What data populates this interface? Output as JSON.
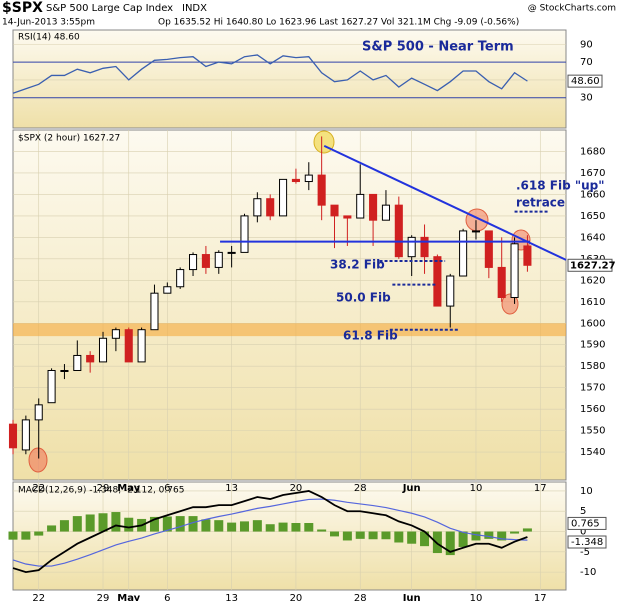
{
  "header": {
    "symbol": "$SPX",
    "name": "S&P 500 Large Cap Index",
    "exchange": "INDX",
    "source": "@ StockCharts.com",
    "date": "14-Jun-2013 3:55pm",
    "quote": "Op 1635.52  Hi 1640.80  Lo 1623.96  Last 1627.27  Vol 321.1M  Chg -9.09 (-0.56%)"
  },
  "chart_data": [
    {
      "type": "line",
      "label": "RSI(14) 48.60",
      "title": "S&P 500 - Near Term",
      "xlim": [
        0,
        43
      ],
      "ylim": [
        -4,
        106
      ],
      "yticks": [
        30,
        50,
        70,
        90
      ],
      "bands": [
        30,
        70
      ],
      "last_label": "48.60",
      "x": [
        0,
        1,
        2,
        3,
        4,
        5,
        6,
        7,
        8,
        9,
        10,
        11,
        12,
        13,
        14,
        15,
        16,
        17,
        18,
        19,
        20,
        21,
        22,
        23,
        24,
        25,
        26,
        27,
        28,
        29,
        30,
        31,
        32,
        33,
        34,
        35,
        36,
        37,
        38,
        39,
        40
      ],
      "series": [
        {
          "color": "#3a5fb0",
          "values": [
            35,
            40,
            45,
            55,
            55,
            62,
            58,
            63,
            65,
            50,
            62,
            72,
            73,
            75,
            76,
            65,
            70,
            68,
            76,
            78,
            68,
            77,
            75,
            76,
            58,
            48,
            50,
            60,
            50,
            55,
            42,
            52,
            45,
            38,
            48,
            60,
            60,
            48,
            40,
            58,
            48.6
          ]
        }
      ]
    },
    {
      "type": "candlestick",
      "label": "$SPX (2 hour) 1627.27",
      "xlim": [
        0,
        43
      ],
      "ylim": [
        1527,
        1690
      ],
      "yticks": [
        1540,
        1550,
        1560,
        1570,
        1580,
        1590,
        1600,
        1610,
        1620,
        1630,
        1640,
        1650,
        1660,
        1670,
        1680
      ],
      "last_label": "1627.27",
      "support_zone": [
        1594,
        1600
      ],
      "xticks": [
        {
          "value": 2,
          "label": "22"
        },
        {
          "value": 7,
          "label": "29"
        },
        {
          "value": 9,
          "label": "May"
        },
        {
          "value": 12,
          "label": "6"
        },
        {
          "value": 17,
          "label": "13"
        },
        {
          "value": 22,
          "label": "20"
        },
        {
          "value": 27,
          "label": "28"
        },
        {
          "value": 31,
          "label": "Jun"
        },
        {
          "value": 36,
          "label": "10"
        },
        {
          "value": 41,
          "label": "17"
        }
      ],
      "x": [
        0,
        1,
        2,
        3,
        4,
        5,
        6,
        7,
        8,
        9,
        10,
        11,
        12,
        13,
        14,
        15,
        16,
        17,
        18,
        19,
        20,
        21,
        22,
        23,
        24,
        25,
        26,
        27,
        28,
        29,
        30,
        31,
        32,
        33,
        34,
        35,
        36,
        37,
        38,
        39,
        40
      ],
      "open": [
        1553,
        1541,
        1555,
        1563,
        1578,
        1578,
        1585,
        1582,
        1593,
        1597,
        1582,
        1597,
        1614,
        1617,
        1625,
        1632,
        1626,
        1633,
        1633,
        1650,
        1658,
        1650,
        1667,
        1666,
        1669,
        1655,
        1650,
        1649,
        1660,
        1648,
        1655,
        1631,
        1640,
        1631,
        1608,
        1622,
        1643,
        1643,
        1626,
        1612,
        1636
      ],
      "high": [
        1555,
        1557,
        1565,
        1579,
        1581,
        1592,
        1587,
        1596,
        1598,
        1598,
        1598,
        1618,
        1619,
        1626,
        1633,
        1636,
        1634,
        1636,
        1651,
        1661,
        1660,
        1667,
        1672,
        1675,
        1687,
        1655,
        1650,
        1674,
        1660,
        1662,
        1659,
        1641,
        1646,
        1632,
        1623,
        1644,
        1648,
        1643,
        1640,
        1640,
        1641
      ],
      "low": [
        1539,
        1539,
        1537,
        1563,
        1574,
        1578,
        1577,
        1582,
        1587,
        1582,
        1582,
        1597,
        1614,
        1616,
        1622,
        1623,
        1623,
        1626,
        1633,
        1647,
        1648,
        1650,
        1665,
        1662,
        1648,
        1635,
        1636,
        1649,
        1636,
        1648,
        1630,
        1622,
        1623,
        1608,
        1598,
        1622,
        1639,
        1621,
        1610,
        1609,
        1624
      ],
      "close": [
        1542,
        1555,
        1562,
        1578,
        1578,
        1585,
        1582,
        1593,
        1597,
        1582,
        1597,
        1614,
        1617,
        1625,
        1632,
        1626,
        1633,
        1633,
        1650,
        1658,
        1650,
        1667,
        1666,
        1669,
        1655,
        1650,
        1649,
        1660,
        1648,
        1655,
        1631,
        1640,
        1631,
        1608,
        1622,
        1643,
        1643,
        1626,
        1612,
        1637,
        1627
      ],
      "lines": [
        {
          "style": "solid",
          "x": [
            16.1,
            40.2
          ],
          "y": [
            1638,
            1638
          ]
        },
        {
          "style": "solid",
          "x": [
            24.2,
            43
          ],
          "y": [
            1682.6,
            1629.5
          ]
        },
        {
          "style": "dashed",
          "x": [
            28.5,
            33.6
          ],
          "y": [
            1629,
            1629
          ]
        },
        {
          "style": "dashed",
          "x": [
            29.5,
            33
          ],
          "y": [
            1618,
            1618
          ]
        },
        {
          "style": "dashed",
          "x": [
            29.3,
            34.6
          ],
          "y": [
            1597,
            1597
          ]
        },
        {
          "style": "dashed",
          "x": [
            39,
            41.6
          ],
          "y": [
            1652,
            1652
          ]
        }
      ],
      "annotations": [
        "38.2 Fib",
        "50.0 Fib",
        "61.8 Fib",
        ".618 Fib \"up\"",
        "retrace"
      ]
    },
    {
      "type": "macd",
      "label": "MACD(12,26,9) -1.348, -2.112, 0.765",
      "xlim": [
        0,
        43
      ],
      "ylim": [
        -14.4,
        12.2
      ],
      "yticks": [
        -10,
        -5,
        0,
        5,
        10
      ],
      "last_labels": [
        "0.765",
        "-1.348"
      ],
      "xticks": [
        {
          "value": 2,
          "label": "22"
        },
        {
          "value": 7,
          "label": "29"
        },
        {
          "value": 9,
          "label": "May"
        },
        {
          "value": 12,
          "label": "6"
        },
        {
          "value": 17,
          "label": "13"
        },
        {
          "value": 22,
          "label": "20"
        },
        {
          "value": 27,
          "label": "28"
        },
        {
          "value": 31,
          "label": "Jun"
        },
        {
          "value": 36,
          "label": "10"
        },
        {
          "value": 41,
          "label": "17"
        }
      ],
      "x": [
        0,
        1,
        2,
        3,
        4,
        5,
        6,
        7,
        8,
        9,
        10,
        11,
        12,
        13,
        14,
        15,
        16,
        17,
        18,
        19,
        20,
        21,
        22,
        23,
        24,
        25,
        26,
        27,
        28,
        29,
        30,
        31,
        32,
        33,
        34,
        35,
        36,
        37,
        38,
        39,
        40
      ],
      "series": [
        {
          "name": "MACD",
          "color": "#000000",
          "values": [
            -9,
            -10,
            -9.5,
            -7,
            -5,
            -3,
            -1.5,
            0,
            1.5,
            1,
            1.5,
            3,
            4,
            5,
            6,
            6,
            6.5,
            6.5,
            7.5,
            8.5,
            8,
            9,
            9.5,
            10,
            8.5,
            6.5,
            5,
            5,
            4.5,
            4,
            2.5,
            1.5,
            0,
            -3,
            -5,
            -4,
            -3,
            -3,
            -4,
            -2.5,
            -1.348
          ]
        },
        {
          "name": "Signal",
          "color": "#5566dd",
          "values": [
            -7,
            -8,
            -8.5,
            -8.5,
            -7.8,
            -6.8,
            -5.7,
            -4.5,
            -3.3,
            -2.4,
            -1.6,
            -0.6,
            0.3,
            1.2,
            2.2,
            3,
            3.7,
            4.3,
            5,
            5.7,
            6.2,
            6.8,
            7.4,
            7.9,
            8,
            7.7,
            7.2,
            6.8,
            6.4,
            5.9,
            5.2,
            4.5,
            3.6,
            2.3,
            0.8,
            -0.2,
            -0.8,
            -1.2,
            -1.8,
            -2.0,
            -2.112
          ]
        },
        {
          "name": "Histogram",
          "color": "#5a9a2a",
          "values": [
            -2,
            -2,
            -1,
            1.5,
            2.8,
            3.8,
            4.2,
            4.5,
            4.8,
            3.4,
            3.1,
            3.6,
            3.7,
            3.8,
            3.8,
            3,
            2.8,
            2.2,
            2.5,
            2.8,
            1.8,
            2.2,
            2.1,
            2.1,
            0.5,
            -1.2,
            -2.2,
            -1.8,
            -1.9,
            -1.9,
            -2.7,
            -3,
            -3.6,
            -5.3,
            -5.8,
            -3.8,
            -2.2,
            -1.8,
            -2.2,
            -0.5,
            0.765
          ]
        }
      ]
    }
  ]
}
